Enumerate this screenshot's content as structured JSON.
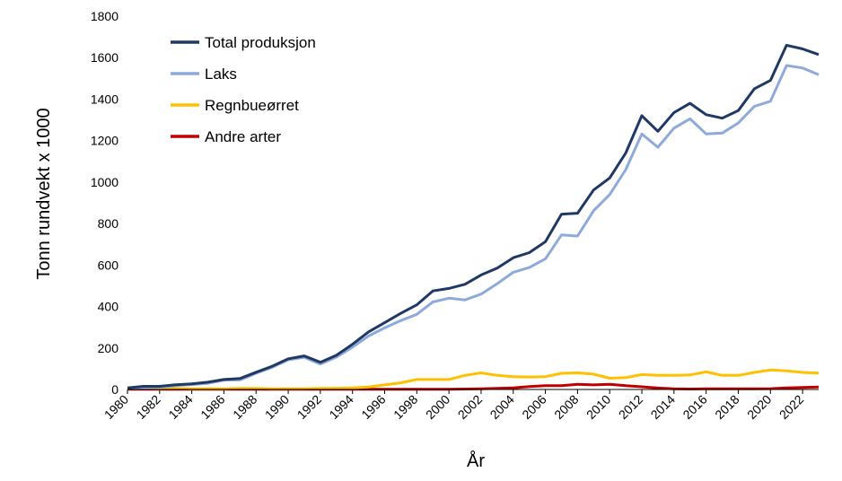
{
  "chart_data": {
    "type": "line",
    "title": "",
    "xlabel": "År",
    "ylabel": "Tonn rundvekt x 1000",
    "xlim": [
      1980,
      2023
    ],
    "ylim": [
      0,
      1800
    ],
    "ytick_values": [
      0,
      200,
      400,
      600,
      800,
      1000,
      1200,
      1400,
      1600,
      1800
    ],
    "ytick_labels": [
      "0",
      "200",
      "400",
      "600",
      "800",
      "1000",
      "1200",
      "1400",
      "1600",
      "1800"
    ],
    "xtick_values": [
      1980,
      1982,
      1984,
      1986,
      1988,
      1990,
      1992,
      1994,
      1996,
      1998,
      2000,
      2002,
      2004,
      2006,
      2008,
      2010,
      2012,
      2014,
      2016,
      2018,
      2020,
      2022
    ],
    "xtick_labels": [
      "1980",
      "1982",
      "1984",
      "1986",
      "1988",
      "1990",
      "1992",
      "1994",
      "1996",
      "1998",
      "2000",
      "2002",
      "2004",
      "2006",
      "2008",
      "2010",
      "2012",
      "2014",
      "2016",
      "2018",
      "2020",
      "2022"
    ],
    "grid": false,
    "legend_position": "top-left",
    "x": [
      1980,
      1981,
      1982,
      1983,
      1984,
      1985,
      1986,
      1987,
      1988,
      1989,
      1990,
      1991,
      1992,
      1993,
      1994,
      1995,
      1996,
      1997,
      1998,
      1999,
      2000,
      2001,
      2002,
      2003,
      2004,
      2005,
      2006,
      2007,
      2008,
      2009,
      2010,
      2011,
      2012,
      2013,
      2014,
      2015,
      2016,
      2017,
      2018,
      2019,
      2020,
      2021,
      2022,
      2023
    ],
    "series": [
      {
        "name": "Total produksjon",
        "color": "#1f3864",
        "values": [
          8,
          15,
          15,
          23,
          27,
          35,
          48,
          53,
          83,
          112,
          148,
          162,
          131,
          165,
          218,
          278,
          322,
          367,
          408,
          475,
          487,
          507,
          552,
          585,
          635,
          660,
          712,
          845,
          850,
          962,
          1020,
          1140,
          1320,
          1245,
          1335,
          1380,
          1325,
          1308,
          1345,
          1450,
          1490,
          1660,
          1642,
          1615
        ]
      },
      {
        "name": "Laks",
        "color": "#8eaadb",
        "values": [
          4,
          9,
          11,
          18,
          24,
          30,
          45,
          46,
          78,
          107,
          143,
          155,
          122,
          156,
          204,
          258,
          297,
          332,
          362,
          422,
          440,
          432,
          460,
          510,
          565,
          588,
          630,
          745,
          740,
          862,
          940,
          1060,
          1232,
          1168,
          1260,
          1305,
          1232,
          1236,
          1285,
          1365,
          1390,
          1562,
          1550,
          1518
        ]
      },
      {
        "name": "Regnbueørret",
        "color": "#ffc000",
        "values": [
          4,
          5,
          4,
          5,
          3,
          4,
          3,
          5,
          5,
          3,
          4,
          4,
          5,
          6,
          8,
          12,
          22,
          32,
          48,
          48,
          48,
          68,
          80,
          68,
          62,
          60,
          62,
          78,
          80,
          74,
          54,
          57,
          72,
          68,
          68,
          70,
          85,
          68,
          68,
          82,
          94,
          90,
          82,
          79
        ]
      },
      {
        "name": "Andre arter",
        "color": "#c00000",
        "values": [
          1,
          1,
          1,
          1,
          1,
          1,
          1,
          1,
          1,
          1,
          1,
          1,
          1,
          1,
          1,
          1,
          1,
          1,
          1,
          1,
          1,
          2,
          3,
          5,
          8,
          14,
          18,
          18,
          25,
          22,
          25,
          18,
          13,
          7,
          3,
          2,
          3,
          3,
          3,
          3,
          4,
          8,
          10,
          12
        ]
      }
    ]
  }
}
